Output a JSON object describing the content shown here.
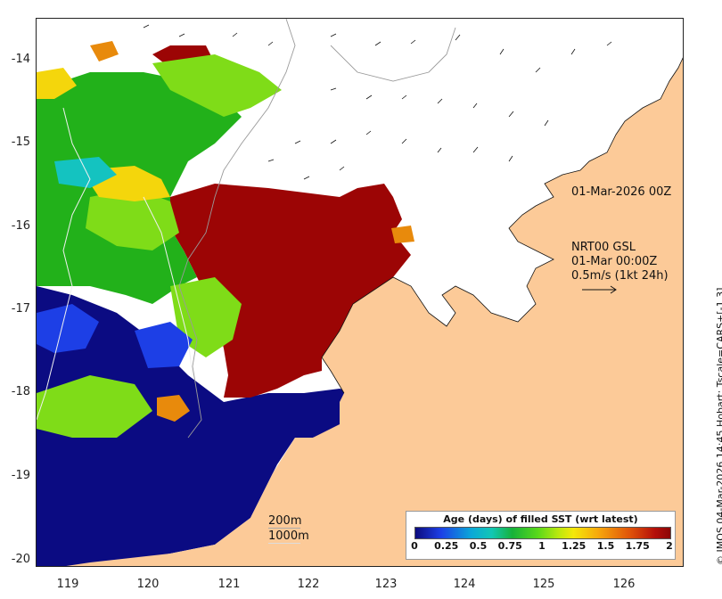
{
  "map": {
    "y_ticks": [
      "-14",
      "-15",
      "-16",
      "-17",
      "-18",
      "-19",
      "-20"
    ],
    "x_ticks": [
      "119",
      "120",
      "121",
      "122",
      "123",
      "124",
      "125",
      "126"
    ],
    "date_label": "01-Mar-2026 00Z",
    "current_product": "NRT00 GSL",
    "current_time": "01-Mar 00:00Z",
    "scale_label": "0.5m/s (1kt 24h)",
    "isobath_200": "200m",
    "isobath_1000": "1000m",
    "side_credit": "© IMOS 04-Mar-2026 14:45 Hobart; Tscale=CARS+[-1 3]",
    "colors": {
      "land": "#fcca98",
      "deep_blue": "#0b0b82",
      "dark_red": "#9c0505",
      "green": "#22b11a",
      "lime": "#7fdc18",
      "yellow": "#f4d60c",
      "orange": "#e88a0c",
      "cyan": "#14c3c0"
    }
  },
  "legend": {
    "title": "Age (days) of filled SST (wrt latest)",
    "ticks": [
      "0",
      "0.25",
      "0.5",
      "0.75",
      "1",
      "1.25",
      "1.5",
      "1.75",
      "2"
    ],
    "tick_values": [
      0,
      0.25,
      0.5,
      0.75,
      1,
      1.25,
      1.5,
      1.75,
      2
    ],
    "range": [
      0,
      2
    ]
  }
}
